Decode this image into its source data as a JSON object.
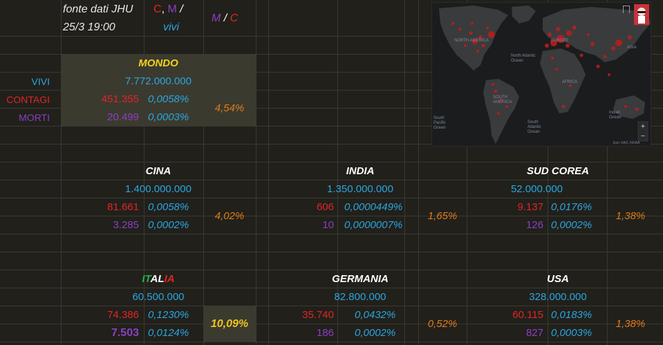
{
  "header": {
    "source_line1": "fonte dati JHU",
    "source_line2": "25/3 19:00",
    "legend1_c": "C",
    "legend1_sep": ",",
    "legend1_m": "M",
    "legend1_slash": "/",
    "legend1_vivi": "vivi",
    "legend2_m": "M",
    "legend2_slash": "/",
    "legend2_c": "C"
  },
  "labels": {
    "vivi": "VIVI",
    "contagi": "CONTAGI",
    "morti": "MORTI"
  },
  "world": {
    "title": "MONDO",
    "population": "7.772.000.000",
    "cases": "451.355",
    "cases_pct": "0,0058%",
    "deaths": "20.499",
    "deaths_pct": "0,0003%",
    "mortality": "4,54%"
  },
  "countries": [
    {
      "name": "CINA",
      "population": "1.400.000.000",
      "cases": "81.661",
      "cases_pct": "0,0058%",
      "deaths": "3.285",
      "deaths_pct": "0,0002%",
      "mortality": "4,02%"
    },
    {
      "name": "INDIA",
      "population": "1.350.000.000",
      "cases": "606",
      "cases_pct": "0,0000449%",
      "deaths": "10",
      "deaths_pct": "0,0000007%",
      "mortality": "1,65%"
    },
    {
      "name": "SUD COREA",
      "population": "52.000.000",
      "cases": "9.137",
      "cases_pct": "0,0176%",
      "deaths": "126",
      "deaths_pct": "0,0002%",
      "mortality": "1,38%"
    },
    {
      "name_parts": [
        "IT",
        "AL",
        "IA"
      ],
      "name_colors": [
        "#22b14c",
        "#ffffff",
        "#e12525"
      ],
      "population": "60.500.000",
      "cases": "74.386",
      "cases_pct": "0,1230%",
      "deaths": "7.503",
      "deaths_pct": "0,0124%",
      "mortality": "10,09%"
    },
    {
      "name": "GERMANIA",
      "population": "82.800.000",
      "cases": "35.740",
      "cases_pct": "0,0432%",
      "deaths": "186",
      "deaths_pct": "0,0002%",
      "mortality": "0,52%"
    },
    {
      "name": "USA",
      "population": "328.000.000",
      "cases": "60.115",
      "cases_pct": "0,0183%",
      "deaths": "827",
      "deaths_pct": "0,0003%",
      "mortality": "1,38%"
    }
  ],
  "map": {
    "labels": {
      "north_america": "NORTH AMERICA",
      "europe": "EUROPE",
      "asia": "ASIA",
      "africa": "AFRICA",
      "south_america": "SOUTH AMERICA",
      "north_atlantic": "North Atlantic Ocean",
      "south_atlantic": "South Atlantic Ocean",
      "south_pacific": "South Pacific Ocean",
      "indian_ocean": "Indian Ocean",
      "attribution": "Esri, FAO, NOAA"
    },
    "zoom_in": "+",
    "zoom_out": "−"
  }
}
